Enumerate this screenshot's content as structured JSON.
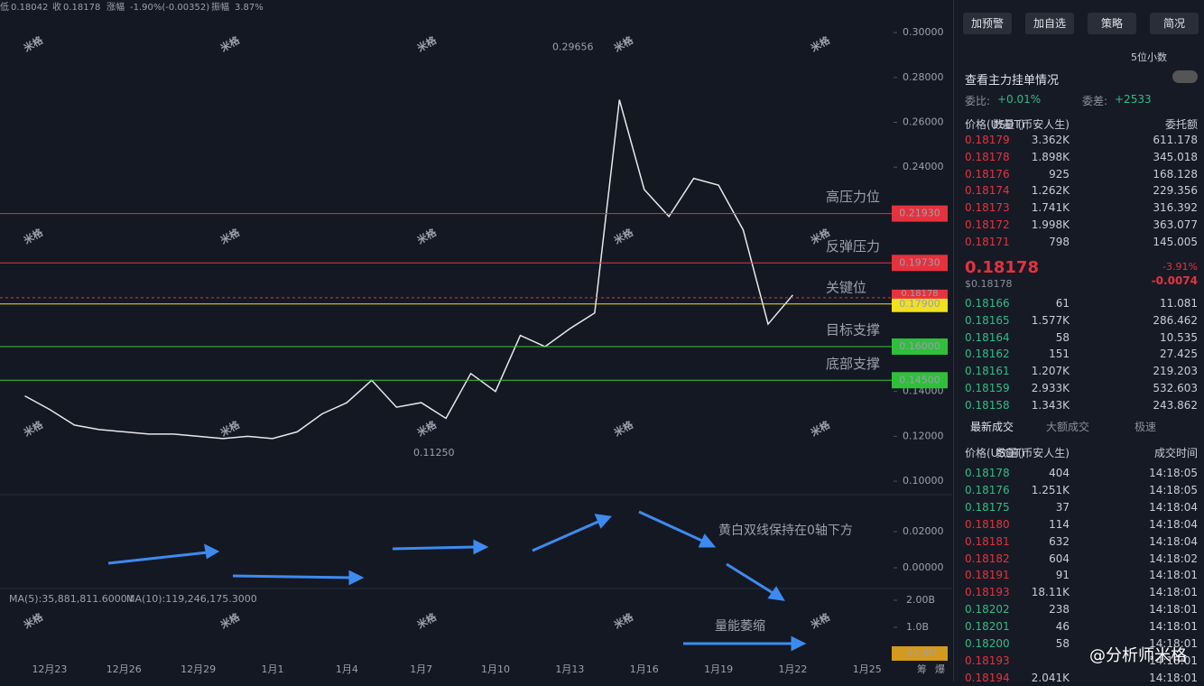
{
  "header": {
    "low_label": "低",
    "low": "0.18042",
    "close_label": "收",
    "close": "0.18178",
    "change_label": "涨幅",
    "change": "-1.90%(-0.00352)",
    "amplitude_label": "振幅",
    "amplitude": "3.87%"
  },
  "watermark": "米格",
  "chart_data": {
    "type": "line",
    "categories": [
      null,
      "12月23",
      null,
      null,
      "12月26",
      null,
      null,
      "12月29",
      null,
      null,
      "1月1",
      null,
      null,
      "1月4",
      null,
      null,
      "1月7",
      null,
      null,
      "1月10",
      null,
      null,
      "1月13",
      null,
      null,
      "1月16",
      null,
      null,
      "1月19",
      null,
      null,
      "1月22",
      null,
      null,
      "1月25"
    ],
    "values": [
      0.138,
      0.132,
      0.125,
      0.123,
      0.122,
      0.121,
      0.121,
      0.12,
      0.119,
      0.12,
      0.119,
      0.122,
      0.13,
      0.135,
      0.145,
      0.133,
      0.135,
      0.128,
      0.148,
      0.14,
      0.165,
      0.16,
      0.168,
      0.175,
      0.27,
      0.23,
      0.218,
      0.235,
      0.232,
      0.212,
      0.17,
      0.183,
      null,
      null,
      null
    ],
    "color": "#e8e8e8",
    "ylim": [
      0.0952,
      0.3105
    ],
    "yticks": [
      {
        "value": 0.3,
        "label": "0.30000"
      },
      {
        "value": 0.28,
        "label": "0.28000"
      },
      {
        "value": 0.26,
        "label": "0.26000"
      },
      {
        "value": 0.24,
        "label": "0.24000"
      },
      {
        "value": 0.14,
        "label": "0.14000"
      },
      {
        "value": 0.12,
        "label": "0.12000"
      },
      {
        "value": 0.1,
        "label": "0.10000"
      }
    ],
    "levels": [
      {
        "value": 0.2193,
        "label": "0.21930",
        "name": "高压力位",
        "color": "#e5323e"
      },
      {
        "value": 0.1973,
        "label": "0.19730",
        "name": "反弹压力",
        "color": "#e5323e"
      },
      {
        "value": 0.179,
        "label": "0.17900",
        "name": "关键位",
        "color": "#f0e020"
      },
      {
        "value": 0.16,
        "label": "0.16000",
        "name": "目标支撑",
        "color": "#3cc63c"
      },
      {
        "value": 0.145,
        "label": "0.14500",
        "name": "底部支撑",
        "color": "#3cc63c"
      }
    ],
    "last_price": {
      "value": 0.18178,
      "label": "0.18178"
    },
    "high": {
      "value": 0.29656,
      "label": "0.29656"
    },
    "low": {
      "value": 0.1125,
      "label": "0.11250"
    }
  },
  "macd": {
    "ylim": [
      -0.013,
      0.0395
    ],
    "yticks": [
      {
        "value": 0.02,
        "label": "0.02000"
      },
      {
        "value": 0,
        "label": "0.00000"
      }
    ],
    "note": "黄白双线保持在0轴下方"
  },
  "volume": {
    "ma5": "MA(5):35,881,811.6000↓",
    "ma10": "MA(10):119,246,175.3000",
    "ylim": [
      0,
      2333000000
    ],
    "yticks": [
      {
        "value": 2000000000,
        "label": "2.00B"
      },
      {
        "value": 1000000000,
        "label": "1.0B"
      }
    ],
    "current": {
      "value": 32800000,
      "label": "32.8M"
    },
    "note": "量能萎缩"
  },
  "footer": {
    "chips": "筹",
    "liquidation": "爆",
    "signature": "@分析师米格"
  },
  "panel": {
    "buttons": [
      "加预警",
      "加自选",
      "策略",
      "简况"
    ],
    "precision": "5位小数",
    "main_orders": "查看主力挂单情况",
    "ratio_label": "委比:",
    "ratio": "+0.01%",
    "diff_label": "委差:",
    "diff": "+2533",
    "book_headers": [
      "价格(USDT)",
      "数量 (币安人生)",
      "委托额"
    ],
    "asks": [
      [
        "0.18179",
        "3.362K",
        "611.178"
      ],
      [
        "0.18178",
        "1.898K",
        "345.018"
      ],
      [
        "0.18176",
        "925",
        "168.128"
      ],
      [
        "0.18174",
        "1.262K",
        "229.356"
      ],
      [
        "0.18173",
        "1.741K",
        "316.392"
      ],
      [
        "0.18172",
        "1.998K",
        "363.077"
      ],
      [
        "0.18171",
        "798",
        "145.005"
      ]
    ],
    "mid": {
      "price": "0.18178",
      "usd": "$0.18178",
      "pct": "-3.91%",
      "change": "-0.0074"
    },
    "bids": [
      [
        "0.18166",
        "61",
        "11.081"
      ],
      [
        "0.18165",
        "1.577K",
        "286.462"
      ],
      [
        "0.18164",
        "58",
        "10.535"
      ],
      [
        "0.18162",
        "151",
        "27.425"
      ],
      [
        "0.18161",
        "1.207K",
        "219.203"
      ],
      [
        "0.18159",
        "2.933K",
        "532.603"
      ],
      [
        "0.18158",
        "1.343K",
        "243.862"
      ]
    ],
    "trade_tabs": [
      "最新成交",
      "大额成交"
    ],
    "fast": "极速",
    "trade_headers": [
      "价格(USDT)",
      "数量(币安人生)",
      "成交时间"
    ],
    "trades": [
      {
        "price": "0.18178",
        "qty": "404",
        "time": "14:18:05",
        "color": "#2ebd85"
      },
      {
        "price": "0.18176",
        "qty": "1.251K",
        "time": "14:18:05",
        "color": "#2ebd85"
      },
      {
        "price": "0.18175",
        "qty": "37",
        "time": "14:18:04",
        "color": "#2ebd85"
      },
      {
        "price": "0.18180",
        "qty": "114",
        "time": "14:18:04",
        "color": "#e5323e"
      },
      {
        "price": "0.18181",
        "qty": "632",
        "time": "14:18:04",
        "color": "#e5323e"
      },
      {
        "price": "0.18182",
        "qty": "604",
        "time": "14:18:02",
        "color": "#e5323e"
      },
      {
        "price": "0.18191",
        "qty": "91",
        "time": "14:18:01",
        "color": "#e5323e"
      },
      {
        "price": "0.18193",
        "qty": "18.11K",
        "time": "14:18:01",
        "color": "#e5323e"
      },
      {
        "price": "0.18202",
        "qty": "238",
        "time": "14:18:01",
        "color": "#2ebd85"
      },
      {
        "price": "0.18201",
        "qty": "46",
        "time": "14:18:01",
        "color": "#2ebd85"
      },
      {
        "price": "0.18200",
        "qty": "58",
        "time": "14:18:01",
        "color": "#2ebd85"
      },
      {
        "price": "0.18193",
        "time": "14:18:01",
        "color": "#e5323e"
      },
      {
        "price": "0.18194",
        "qty": "2.041K",
        "time": "14:18:01",
        "color": "#e5323e"
      }
    ]
  }
}
